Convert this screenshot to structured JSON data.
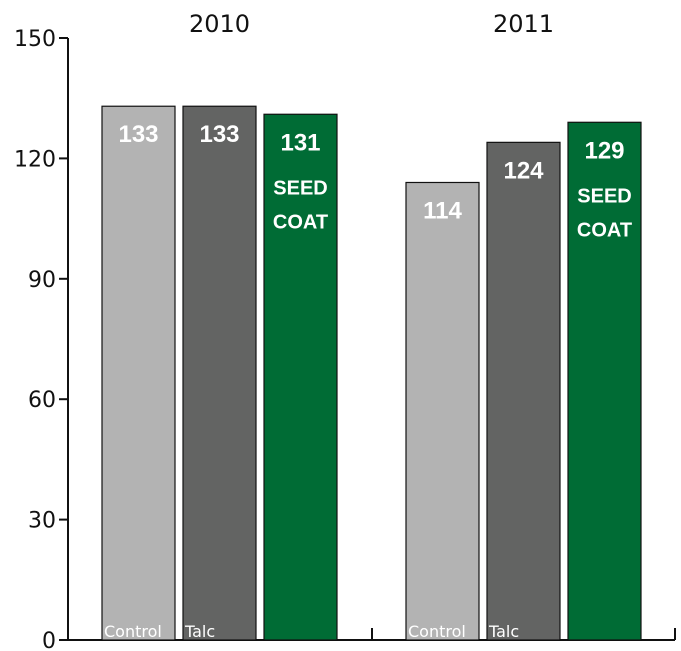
{
  "chart_data": {
    "type": "bar",
    "ylim": [
      0,
      150
    ],
    "yticks": [
      0,
      30,
      60,
      90,
      120,
      150
    ],
    "grid": false,
    "legend": "none",
    "groups": [
      {
        "label": "2010",
        "bars": [
          {
            "category": "Control",
            "value": 133,
            "label": "133",
            "note": [],
            "color": "#b3b3b3"
          },
          {
            "category": "Talc",
            "value": 133,
            "label": "133",
            "note": [],
            "color": "#636463"
          },
          {
            "category": "",
            "value": 131,
            "label": "131",
            "note": [
              "SEED",
              "COAT"
            ],
            "color": "#006c35"
          }
        ]
      },
      {
        "label": "2011",
        "bars": [
          {
            "category": "Control",
            "value": 114,
            "label": "114",
            "note": [],
            "color": "#b3b3b3"
          },
          {
            "category": "Talc",
            "value": 124,
            "label": "124",
            "note": [],
            "color": "#636463"
          },
          {
            "category": "",
            "value": 129,
            "label": "129",
            "note": [
              "SEED",
              "COAT"
            ],
            "color": "#006c35"
          }
        ]
      }
    ]
  }
}
